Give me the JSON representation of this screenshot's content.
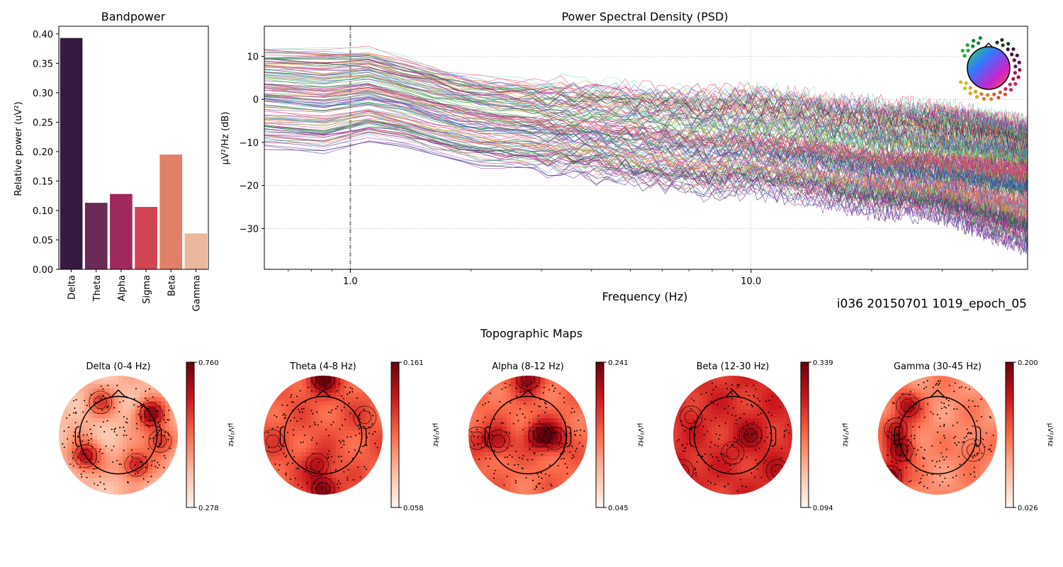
{
  "figure": {
    "recording_label": "i036 20150701 1019_epoch_05",
    "topomaps_title": "Topographic Maps"
  },
  "chart_data": [
    {
      "type": "bar",
      "title": "Bandpower",
      "xlabel": "",
      "ylabel": "Relative power (uV²)",
      "categories": [
        "Delta",
        "Theta",
        "Alpha",
        "Sigma",
        "Beta",
        "Gamma"
      ],
      "values": [
        0.393,
        0.113,
        0.128,
        0.106,
        0.195,
        0.061
      ],
      "colors": [
        "#35193e",
        "#6b2a55",
        "#a0285c",
        "#cf4551",
        "#e17f68",
        "#ebb89d"
      ],
      "ylim": [
        0,
        0.413
      ],
      "yticks": [
        0.0,
        0.05,
        0.1,
        0.15,
        0.2,
        0.25,
        0.3,
        0.35,
        0.4
      ],
      "ytick_labels": [
        "0.00",
        "0.05",
        "0.10",
        "0.15",
        "0.20",
        "0.25",
        "0.30",
        "0.35",
        "0.40"
      ],
      "grid": false
    },
    {
      "type": "line",
      "title": "Power Spectral Density (PSD)",
      "xlabel": "Frequency (Hz)",
      "ylabel": "µV²/Hz (dB)",
      "xscale": "log",
      "xlim": [
        0.61,
        49
      ],
      "ylim": [
        -39.5,
        17
      ],
      "xticks": [
        1.0,
        10.0
      ],
      "xtick_labels": [
        "1.0",
        "10.0"
      ],
      "yticks": [
        -30,
        -20,
        -10,
        0,
        10
      ],
      "ytick_labels": [
        "−30",
        "−20",
        "−10",
        "0",
        "10"
      ],
      "grid": true,
      "vline_x": 1.0,
      "legend": "sensor-location head inset, top-right",
      "n_channels_approx": 256,
      "series_summary": {
        "description": "Hundreds of per-channel PSD traces; envelope values read from plot",
        "frequency_hz": [
          0.61,
          0.8,
          1.0,
          1.25,
          1.5,
          2.0,
          3.0,
          5.0,
          8.0,
          10.0,
          15.0,
          20.0,
          30.0,
          40.0,
          49.0
        ],
        "upper_db": [
          13,
          12,
          14,
          11,
          9,
          6,
          5,
          4,
          3,
          4,
          2,
          1,
          0,
          -2,
          -4
        ],
        "median_db": [
          3,
          1,
          4,
          2,
          0,
          -3,
          -5,
          -7,
          -9,
          -9,
          -11,
          -13,
          -14,
          -15,
          -16
        ],
        "lower_db": [
          -12,
          -14,
          -11,
          -10,
          -13,
          -16,
          -17,
          -20,
          -23,
          -22,
          -25,
          -27,
          -28,
          -33,
          -36
        ]
      }
    },
    {
      "type": "heatmap",
      "title": "Delta (0-4 Hz)",
      "colorbar_label": "µV²/Hz",
      "vmin": 0.278,
      "vmax": 0.76,
      "vmin_label": "0.278",
      "vmax_label": "0.760",
      "colormap": "Reds",
      "hotspots": [
        [
          0.55,
          -0.35,
          0.9
        ],
        [
          -0.55,
          0.35,
          0.85
        ],
        [
          0.3,
          0.5,
          0.8
        ],
        [
          0.7,
          0.1,
          0.7
        ],
        [
          -0.3,
          -0.55,
          0.6
        ]
      ],
      "base_level": 0.25
    },
    {
      "type": "heatmap",
      "title": "Theta (4-8 Hz)",
      "colorbar_label": "µV²/Hz",
      "vmin": 0.058,
      "vmax": 0.161,
      "vmin_label": "0.058",
      "vmax_label": "0.161",
      "colormap": "Reds",
      "hotspots": [
        [
          0.0,
          -0.95,
          1.0
        ],
        [
          0.0,
          0.9,
          0.95
        ],
        [
          -0.1,
          0.5,
          0.8
        ],
        [
          -0.85,
          0.1,
          0.6
        ],
        [
          0.7,
          -0.3,
          0.6
        ]
      ],
      "base_level": 0.55
    },
    {
      "type": "heatmap",
      "title": "Alpha (8-12 Hz)",
      "colorbar_label": "µV²/Hz",
      "vmin": 0.045,
      "vmax": 0.241,
      "vmin_label": "0.045",
      "vmax_label": "0.241",
      "colormap": "Reds",
      "hotspots": [
        [
          0.2,
          0.0,
          0.95
        ],
        [
          0.45,
          0.05,
          0.8
        ],
        [
          0.0,
          -0.95,
          0.9
        ],
        [
          -0.5,
          0.1,
          0.8
        ],
        [
          -0.85,
          0.05,
          0.65
        ]
      ],
      "base_level": 0.5
    },
    {
      "type": "heatmap",
      "title": "Beta (12-30 Hz)",
      "colorbar_label": "µV²/Hz",
      "vmin": 0.094,
      "vmax": 0.339,
      "vmin_label": "0.094",
      "vmax_label": "0.339",
      "colormap": "Reds",
      "hotspots": [
        [
          0.3,
          0.0,
          0.85
        ],
        [
          -0.85,
          0.6,
          0.8
        ],
        [
          0.75,
          0.6,
          0.75
        ],
        [
          -0.7,
          -0.3,
          0.7
        ],
        [
          0.0,
          0.3,
          0.7
        ]
      ],
      "base_level": 0.68
    },
    {
      "type": "heatmap",
      "title": "Gamma (30-45 Hz)",
      "colorbar_label": "µV²/Hz",
      "vmin": 0.026,
      "vmax": 0.2,
      "vmin_label": "0.026",
      "vmax_label": "0.200",
      "colormap": "Reds",
      "hotspots": [
        [
          -0.8,
          0.7,
          1.0
        ],
        [
          -0.6,
          0.25,
          0.85
        ],
        [
          -0.5,
          -0.5,
          0.8
        ],
        [
          -0.7,
          -0.1,
          0.75
        ],
        [
          0.6,
          0.25,
          0.55
        ]
      ],
      "base_level": 0.4
    }
  ]
}
